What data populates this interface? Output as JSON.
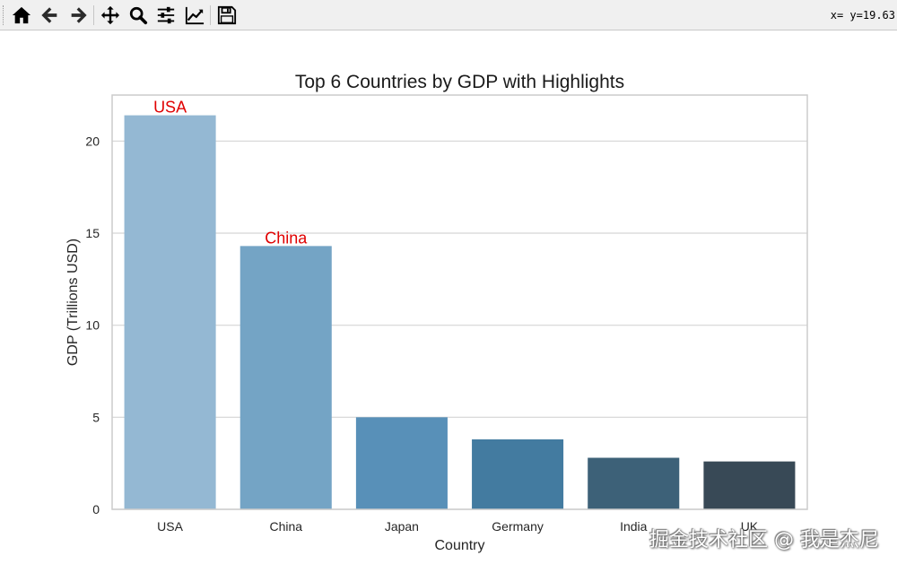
{
  "toolbar": {
    "buttons": [
      {
        "name": "home-icon",
        "title": "Home"
      },
      {
        "name": "back-icon",
        "title": "Back"
      },
      {
        "name": "forward-icon",
        "title": "Forward"
      },
      {
        "name": "pan-icon",
        "title": "Pan"
      },
      {
        "name": "zoom-icon",
        "title": "Zoom"
      },
      {
        "name": "configure-subplots-icon",
        "title": "Configure subplots"
      },
      {
        "name": "edit-axis-icon",
        "title": "Edit axis"
      },
      {
        "name": "save-icon",
        "title": "Save"
      }
    ],
    "coords_text": "x= y=19.63"
  },
  "chart_data": {
    "type": "bar",
    "title": "Top 6 Countries by GDP with Highlights",
    "xlabel": "Country",
    "ylabel": "GDP (Trillions USD)",
    "categories": [
      "USA",
      "China",
      "Japan",
      "Germany",
      "India",
      "UK"
    ],
    "values": [
      21.4,
      14.3,
      5.0,
      3.8,
      2.8,
      2.6
    ],
    "ylim": [
      0,
      22.5
    ],
    "yticks": [
      0,
      5,
      10,
      15,
      20
    ],
    "grid": "horizontal",
    "bar_colors": [
      "#94b8d3",
      "#74a4c5",
      "#5890b8",
      "#437ba0",
      "#3d6178",
      "#384956"
    ],
    "highlights": [
      {
        "category": "USA",
        "label": "USA"
      },
      {
        "category": "China",
        "label": "China"
      }
    ],
    "highlight_color": "#e00000"
  },
  "watermark": "掘金技术社区 @ 我是杰尼"
}
